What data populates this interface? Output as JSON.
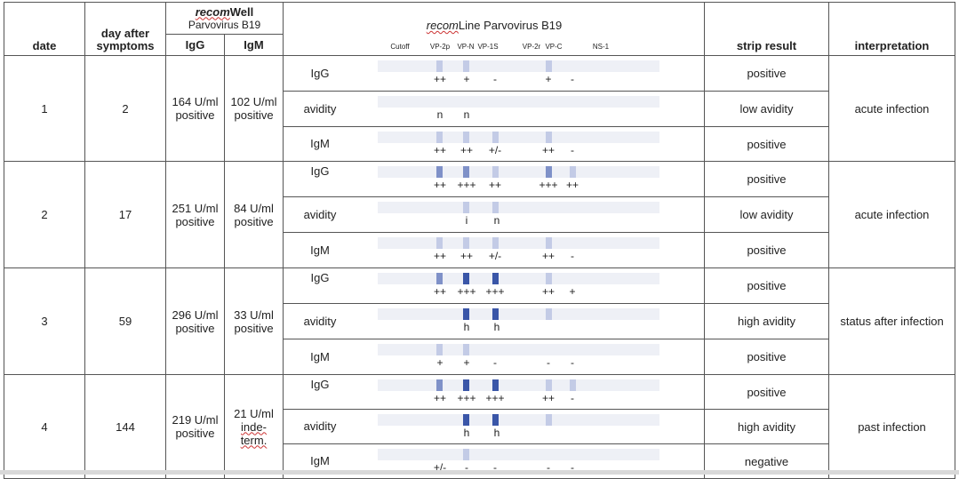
{
  "header": {
    "date": "date",
    "day_after_symptoms": "day after symptoms",
    "recomwell_prefix": "recom",
    "recomwell_suffix": "Well",
    "recomwell_sub": "Parvovirus B19",
    "igg": "IgG",
    "igm": "IgM",
    "recomline_prefix": "recom",
    "recomline_suffix": "Line Parvovirus B19",
    "strip_result": "strip result",
    "interpretation": "interpretation",
    "bands": [
      "Cutoff",
      "VP-2p",
      "VP-N",
      "VP-1S",
      "VP-2r",
      "VP-C",
      "NS-1"
    ]
  },
  "rows": [
    {
      "date": "1",
      "day": "2",
      "igg_val": "164 U/ml",
      "igg_status": "positive",
      "igm_val": "102 U/ml",
      "igm_status": "positive",
      "interpretation": "acute infection",
      "strips": [
        {
          "type": "IgG",
          "result": "positive",
          "scores": [
            "++",
            "+",
            "-",
            "+",
            "-"
          ]
        },
        {
          "type": "avidity",
          "result": "low avidity",
          "scores": [
            "n",
            "n"
          ]
        },
        {
          "type": "IgM",
          "result": "positive",
          "scores": [
            "++",
            "++",
            "+/-",
            "++",
            "-"
          ]
        }
      ]
    },
    {
      "date": "2",
      "day": "17",
      "igg_val": "251 U/ml",
      "igg_status": "positive",
      "igm_val": "84 U/ml",
      "igm_status": "positive",
      "interpretation": "acute infection",
      "strips": [
        {
          "type": "IgG",
          "result": "positive",
          "scores": [
            "++",
            "+++",
            "++",
            "+++",
            "++"
          ]
        },
        {
          "type": "avidity",
          "result": "low avidity",
          "scores": [
            "i",
            "n"
          ]
        },
        {
          "type": "IgM",
          "result": "positive",
          "scores": [
            "++",
            "++",
            "+/-",
            "++",
            "-"
          ]
        }
      ]
    },
    {
      "date": "3",
      "day": "59",
      "igg_val": "296 U/ml",
      "igg_status": "positive",
      "igm_val": "33 U/ml",
      "igm_status": "positive",
      "interpretation": "status after infection",
      "strips": [
        {
          "type": "IgG",
          "result": "positive",
          "scores": [
            "++",
            "+++",
            "+++",
            "++",
            "+"
          ]
        },
        {
          "type": "avidity",
          "result": "high avidity",
          "scores": [
            "h",
            "h"
          ]
        },
        {
          "type": "IgM",
          "result": "positive",
          "scores": [
            "+",
            "+",
            "-",
            "-",
            "-"
          ]
        }
      ]
    },
    {
      "date": "4",
      "day": "144",
      "igg_val": "219 U/ml",
      "igg_status": "positive",
      "igm_val": "21 U/ml",
      "igm_status": "inde-term.",
      "interpretation": "past infection",
      "strips": [
        {
          "type": "IgG",
          "result": "positive",
          "scores": [
            "++",
            "+++",
            "+++",
            "++",
            "-"
          ]
        },
        {
          "type": "avidity",
          "result": "high avidity",
          "scores": [
            "h",
            "h"
          ]
        },
        {
          "type": "IgM",
          "result": "negative",
          "scores": [
            "+/-",
            "-",
            "-",
            "-",
            "-"
          ]
        }
      ]
    }
  ],
  "band_colors": {
    "strong": "#3a56a8",
    "medium": "#7f91c8",
    "weak": "#c3cbe6",
    "paper": "#eef0f6"
  }
}
